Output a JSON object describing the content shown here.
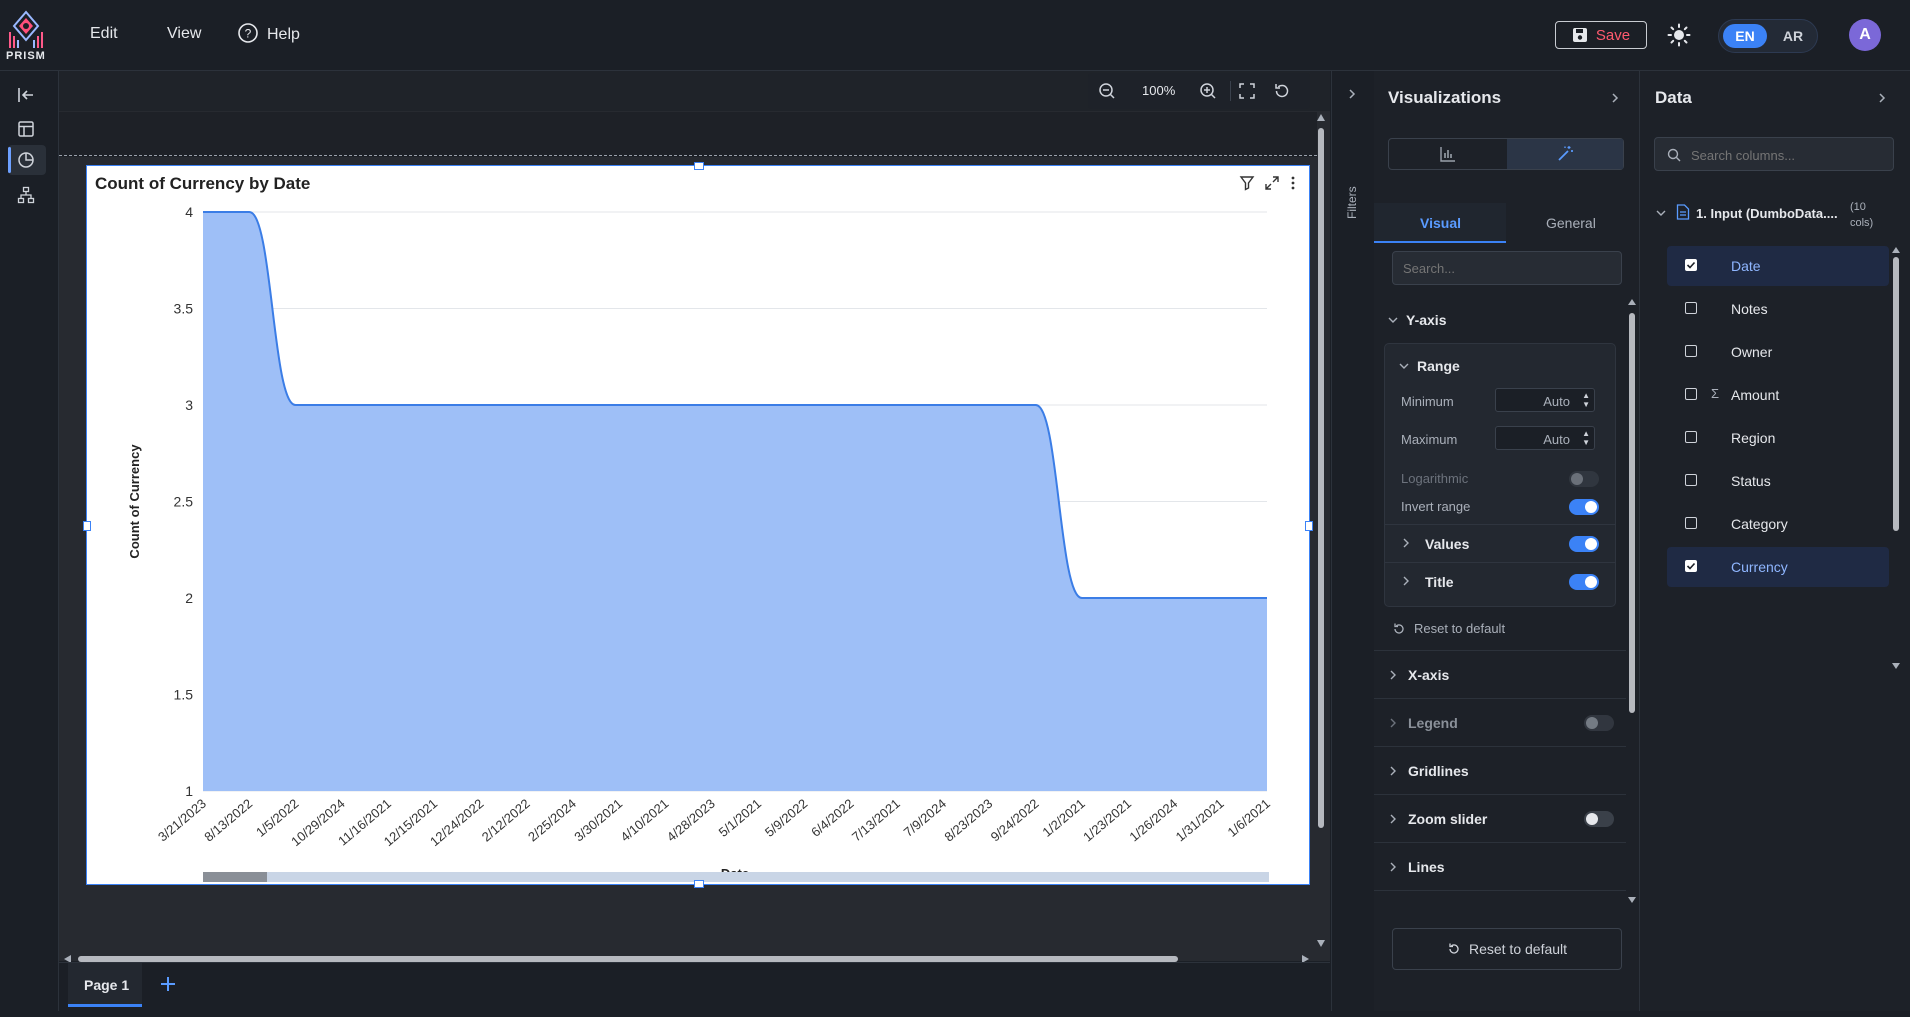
{
  "app": {
    "logo_text": "PRISM",
    "menu": {
      "edit": "Edit",
      "view": "View",
      "help": "Help"
    },
    "save_label": "Save",
    "lang": {
      "en": "EN",
      "ar": "AR"
    },
    "avatar_initial": "A"
  },
  "toolbar": {
    "zoom_level": "100%"
  },
  "chart_data": {
    "type": "area",
    "title": "Count of Currency by Date",
    "xlabel": "Date",
    "ylabel": "Count of Currency",
    "categories": [
      "3/21/2023",
      "8/13/2022",
      "1/5/2022",
      "10/29/2024",
      "11/16/2021",
      "12/15/2021",
      "12/24/2022",
      "2/12/2022",
      "2/25/2024",
      "3/30/2021",
      "4/10/2021",
      "4/28/2023",
      "5/1/2021",
      "5/9/2022",
      "6/4/2022",
      "7/13/2021",
      "7/9/2024",
      "8/23/2023",
      "9/24/2022",
      "1/2/2021",
      "1/23/2021",
      "1/26/2024",
      "1/31/2021",
      "1/6/2021"
    ],
    "values": [
      4,
      4,
      3,
      3,
      3,
      3,
      3,
      3,
      3,
      3,
      3,
      3,
      3,
      3,
      3,
      3,
      3,
      3,
      3,
      2,
      2,
      2,
      2,
      2
    ],
    "yticks": [
      "4",
      "3.5",
      "3",
      "2.5",
      "2",
      "1.5",
      "1"
    ],
    "ylim": [
      1,
      4
    ],
    "grid": true,
    "color": "#9ebff7",
    "line_color": "#3b7de6"
  },
  "page_tabs": {
    "page1": "Page 1"
  },
  "filters_label": "Filters",
  "viz_panel": {
    "title": "Visualizations",
    "tabs": {
      "visual": "Visual",
      "general": "General"
    },
    "search_placeholder": "Search...",
    "yaxis": {
      "label": "Y-axis",
      "range_label": "Range",
      "minimum_label": "Minimum",
      "minimum_value": "Auto",
      "maximum_label": "Maximum",
      "maximum_value": "Auto",
      "logarithmic_label": "Logarithmic",
      "invert_label": "Invert range",
      "values_label": "Values",
      "title_label": "Title",
      "reset_label": "Reset to default"
    },
    "sections": {
      "xaxis": "X-axis",
      "legend": "Legend",
      "gridlines": "Gridlines",
      "zoom_slider": "Zoom slider",
      "lines": "Lines"
    },
    "reset_footer": "Reset to default"
  },
  "data_panel": {
    "title": "Data",
    "search_placeholder": "Search columns...",
    "dataset_name": "1. Input (DumboData....",
    "dataset_count": "(10 cols)",
    "columns": [
      {
        "name": "Date",
        "checked": true
      },
      {
        "name": "Notes",
        "checked": false
      },
      {
        "name": "Owner",
        "checked": false
      },
      {
        "name": "Amount",
        "checked": false,
        "icon": "sigma"
      },
      {
        "name": "Region",
        "checked": false
      },
      {
        "name": "Status",
        "checked": false
      },
      {
        "name": "Category",
        "checked": false
      },
      {
        "name": "Currency",
        "checked": true
      }
    ]
  }
}
